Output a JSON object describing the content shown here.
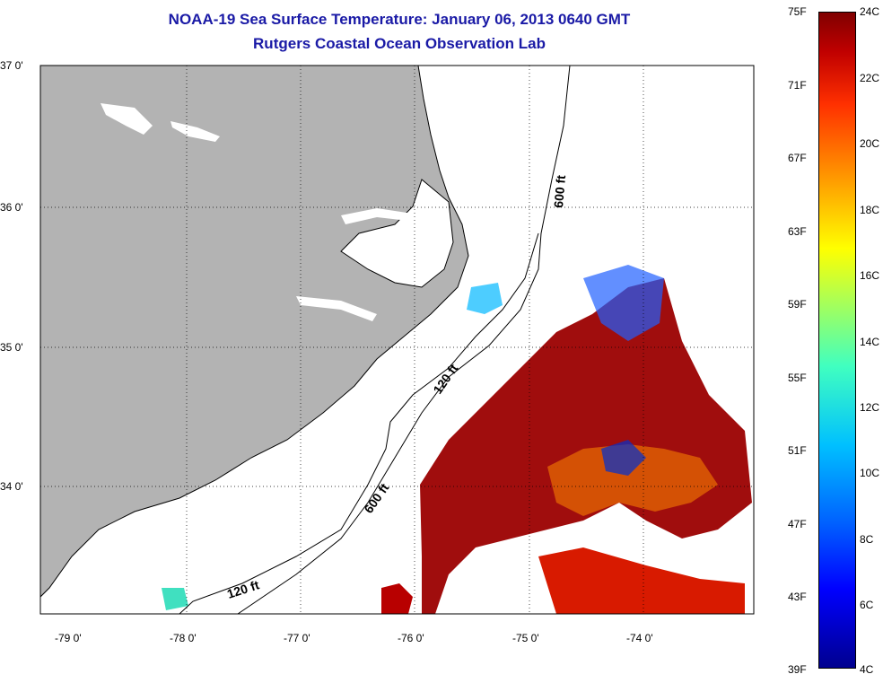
{
  "title": {
    "line1": "NOAA-19 Sea Surface Temperature:  January 06, 2013 0640 GMT",
    "line2": "Rutgers Coastal Ocean Observation Lab"
  },
  "axes": {
    "lat_labels": [
      "37 0'",
      "36 0'",
      "35 0'",
      "34 0'"
    ],
    "lon_labels": [
      "-79 0'",
      "-78 0'",
      "-77 0'",
      "-76 0'",
      "-75 0'",
      "-74 0'"
    ]
  },
  "depth_contours": {
    "labels": [
      "600 ft",
      "120 ft",
      "600 ft",
      "120 ft"
    ]
  },
  "colorbar": {
    "fahrenheit": [
      "75F",
      "71F",
      "67F",
      "63F",
      "59F",
      "55F",
      "51F",
      "47F",
      "43F",
      "39F"
    ],
    "celsius": [
      "24C",
      "22C",
      "20C",
      "18C",
      "16C",
      "14C",
      "12C",
      "10C",
      "8C",
      "6C",
      "4C"
    ]
  },
  "colors": {
    "land": "#b3b3b3",
    "title": "#1a1aa6",
    "warm": "#9b0000",
    "cold": "#0000ff"
  }
}
